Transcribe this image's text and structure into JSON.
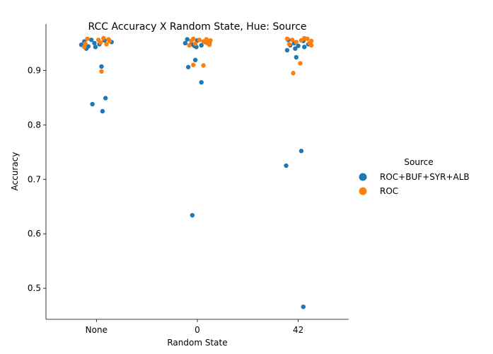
{
  "chart_data": {
    "type": "scatter",
    "subtype": "strip",
    "title": "RCC Accuracy X Random State, Hue: Source",
    "xlabel": "Random State",
    "ylabel": "Accuracy",
    "categories": [
      "None",
      "0",
      "42"
    ],
    "ylim": [
      0.443,
      0.985
    ],
    "yticks": [
      0.5,
      0.6,
      0.7,
      0.8,
      0.9
    ],
    "ytick_labels": [
      "0.5",
      "0.6",
      "0.7",
      "0.8",
      "0.9"
    ],
    "grid": false,
    "legend": {
      "title": "Source",
      "placement": "center-right"
    },
    "series": [
      {
        "name": "ROC+BUF+SYR+ALB",
        "color": "#1f77b4",
        "points": [
          {
            "cat": "None",
            "jitter": -0.05,
            "y": 0.956
          },
          {
            "cat": "None",
            "jitter": -0.12,
            "y": 0.953
          },
          {
            "cat": "None",
            "jitter": 0.08,
            "y": 0.955
          },
          {
            "cat": "None",
            "jitter": -0.02,
            "y": 0.95
          },
          {
            "cat": "None",
            "jitter": 0.15,
            "y": 0.952
          },
          {
            "cat": "None",
            "jitter": -0.15,
            "y": 0.947
          },
          {
            "cat": "None",
            "jitter": 0.03,
            "y": 0.948
          },
          {
            "cat": "None",
            "jitter": -0.08,
            "y": 0.944
          },
          {
            "cat": "None",
            "jitter": -0.01,
            "y": 0.943
          },
          {
            "cat": "None",
            "jitter": -0.1,
            "y": 0.94
          },
          {
            "cat": "None",
            "jitter": 0.05,
            "y": 0.907
          },
          {
            "cat": "None",
            "jitter": 0.09,
            "y": 0.849
          },
          {
            "cat": "None",
            "jitter": -0.04,
            "y": 0.838
          },
          {
            "cat": "None",
            "jitter": 0.06,
            "y": 0.825
          },
          {
            "cat": "0",
            "jitter": -0.1,
            "y": 0.957
          },
          {
            "cat": "0",
            "jitter": 0.0,
            "y": 0.955
          },
          {
            "cat": "0",
            "jitter": 0.08,
            "y": 0.952
          },
          {
            "cat": "0",
            "jitter": -0.12,
            "y": 0.95
          },
          {
            "cat": "0",
            "jitter": 0.12,
            "y": 0.949
          },
          {
            "cat": "0",
            "jitter": -0.06,
            "y": 0.948
          },
          {
            "cat": "0",
            "jitter": 0.04,
            "y": 0.946
          },
          {
            "cat": "0",
            "jitter": -0.03,
            "y": 0.945
          },
          {
            "cat": "0",
            "jitter": -0.01,
            "y": 0.943
          },
          {
            "cat": "0",
            "jitter": -0.02,
            "y": 0.919
          },
          {
            "cat": "0",
            "jitter": -0.09,
            "y": 0.906
          },
          {
            "cat": "0",
            "jitter": 0.04,
            "y": 0.878
          },
          {
            "cat": "0",
            "jitter": -0.05,
            "y": 0.634
          },
          {
            "cat": "42",
            "jitter": -0.1,
            "y": 0.956
          },
          {
            "cat": "42",
            "jitter": 0.05,
            "y": 0.954
          },
          {
            "cat": "42",
            "jitter": -0.04,
            "y": 0.95
          },
          {
            "cat": "42",
            "jitter": 0.1,
            "y": 0.948
          },
          {
            "cat": "42",
            "jitter": -0.08,
            "y": 0.946
          },
          {
            "cat": "42",
            "jitter": 0.0,
            "y": 0.945
          },
          {
            "cat": "42",
            "jitter": 0.06,
            "y": 0.943
          },
          {
            "cat": "42",
            "jitter": -0.03,
            "y": 0.94
          },
          {
            "cat": "42",
            "jitter": -0.11,
            "y": 0.937
          },
          {
            "cat": "42",
            "jitter": -0.02,
            "y": 0.924
          },
          {
            "cat": "42",
            "jitter": 0.03,
            "y": 0.752
          },
          {
            "cat": "42",
            "jitter": -0.12,
            "y": 0.725
          },
          {
            "cat": "42",
            "jitter": 0.05,
            "y": 0.466
          }
        ]
      },
      {
        "name": "ROC",
        "color": "#ff7f0e",
        "points": [
          {
            "cat": "None",
            "jitter": -0.09,
            "y": 0.958
          },
          {
            "cat": "None",
            "jitter": 0.07,
            "y": 0.959
          },
          {
            "cat": "None",
            "jitter": 0.12,
            "y": 0.957
          },
          {
            "cat": "None",
            "jitter": 0.02,
            "y": 0.956
          },
          {
            "cat": "None",
            "jitter": 0.13,
            "y": 0.954
          },
          {
            "cat": "None",
            "jitter": 0.04,
            "y": 0.951
          },
          {
            "cat": "None",
            "jitter": -0.11,
            "y": 0.949
          },
          {
            "cat": "None",
            "jitter": 0.1,
            "y": 0.948
          },
          {
            "cat": "None",
            "jitter": -0.12,
            "y": 0.943
          },
          {
            "cat": "None",
            "jitter": 0.05,
            "y": 0.898
          },
          {
            "cat": "0",
            "jitter": -0.04,
            "y": 0.958
          },
          {
            "cat": "0",
            "jitter": 0.09,
            "y": 0.957
          },
          {
            "cat": "0",
            "jitter": 0.02,
            "y": 0.956
          },
          {
            "cat": "0",
            "jitter": 0.13,
            "y": 0.955
          },
          {
            "cat": "0",
            "jitter": -0.06,
            "y": 0.954
          },
          {
            "cat": "0",
            "jitter": 0.06,
            "y": 0.953
          },
          {
            "cat": "0",
            "jitter": 0.1,
            "y": 0.95
          },
          {
            "cat": "0",
            "jitter": -0.02,
            "y": 0.949
          },
          {
            "cat": "0",
            "jitter": 0.12,
            "y": 0.947
          },
          {
            "cat": "0",
            "jitter": -0.08,
            "y": 0.946
          },
          {
            "cat": "0",
            "jitter": -0.04,
            "y": 0.91
          },
          {
            "cat": "0",
            "jitter": 0.06,
            "y": 0.909
          },
          {
            "cat": "42",
            "jitter": -0.11,
            "y": 0.958
          },
          {
            "cat": "42",
            "jitter": 0.06,
            "y": 0.959
          },
          {
            "cat": "42",
            "jitter": 0.09,
            "y": 0.958
          },
          {
            "cat": "42",
            "jitter": -0.06,
            "y": 0.956
          },
          {
            "cat": "42",
            "jitter": 0.03,
            "y": 0.955
          },
          {
            "cat": "42",
            "jitter": 0.13,
            "y": 0.954
          },
          {
            "cat": "42",
            "jitter": -0.02,
            "y": 0.952
          },
          {
            "cat": "42",
            "jitter": 0.11,
            "y": 0.95
          },
          {
            "cat": "42",
            "jitter": -0.09,
            "y": 0.948
          },
          {
            "cat": "42",
            "jitter": 0.13,
            "y": 0.946
          },
          {
            "cat": "42",
            "jitter": 0.02,
            "y": 0.913
          },
          {
            "cat": "42",
            "jitter": -0.05,
            "y": 0.895
          }
        ]
      }
    ]
  }
}
